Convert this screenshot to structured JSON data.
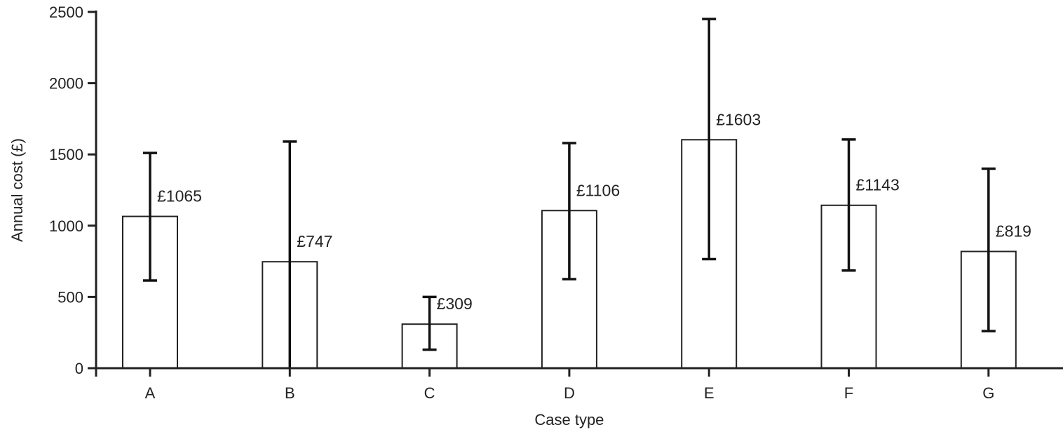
{
  "chart_data": {
    "type": "bar",
    "categories": [
      "A",
      "B",
      "C",
      "D",
      "E",
      "F",
      "G"
    ],
    "values": [
      1065,
      747,
      309,
      1106,
      1603,
      1143,
      819
    ],
    "error_upper": [
      1510,
      1590,
      500,
      1580,
      2450,
      1605,
      1400
    ],
    "error_lower": [
      615,
      0,
      130,
      625,
      765,
      685,
      260
    ],
    "value_labels": [
      "£1065",
      "£747",
      "£309",
      "£1106",
      "£1603",
      "£1143",
      "£819"
    ],
    "xlabel": "Case type",
    "ylabel": "Annual cost (£)",
    "ylim": [
      0,
      2500
    ],
    "yticks": [
      0,
      500,
      1000,
      1500,
      2000,
      2500
    ],
    "grid": false,
    "bar_fill": "#ffffff",
    "bar_stroke": "#222222"
  }
}
